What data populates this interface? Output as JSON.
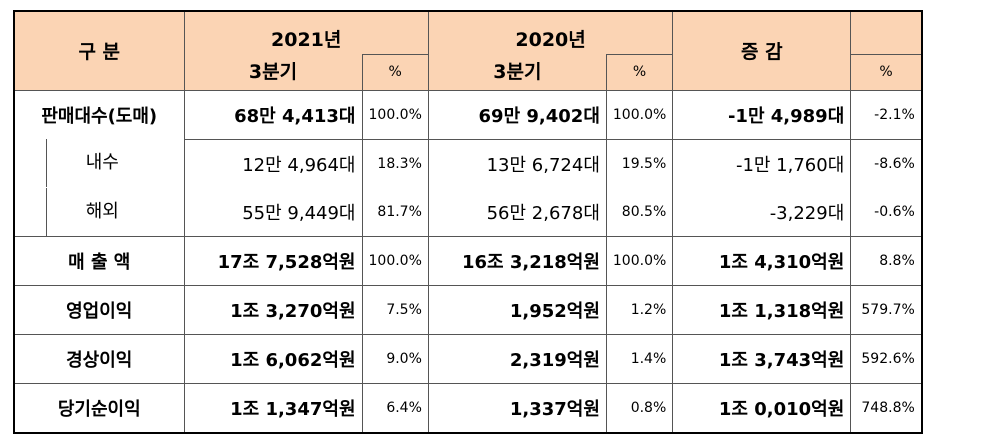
{
  "header": {
    "col_label": "구 분",
    "groups": [
      {
        "year": "2021년",
        "quarter": "3분기",
        "pct": "%"
      },
      {
        "year": "2020년",
        "quarter": "3분기",
        "pct": "%"
      }
    ],
    "change": {
      "label": "증 감",
      "pct": "%"
    }
  },
  "rows": [
    {
      "label": "판매대수(도매)",
      "cells": [
        "68만 4,413대",
        "100.0%",
        "69만 9,402대",
        "100.0%",
        "-1만 4,989대",
        "-2.1%"
      ]
    },
    {
      "label": "내수",
      "cells": [
        "12만 4,964대",
        "18.3%",
        "13만 6,724대",
        "19.5%",
        "-1만 1,760대",
        "-8.6%"
      ]
    },
    {
      "label": "해외",
      "cells": [
        "55만 9,449대",
        "81.7%",
        "56만 2,678대",
        "80.5%",
        "-3,229대",
        "-0.6%"
      ]
    },
    {
      "label": "매 출 액",
      "cells": [
        "17조 7,528억원",
        "100.0%",
        "16조 3,218억원",
        "100.0%",
        "1조 4,310억원",
        "8.8%"
      ]
    },
    {
      "label": "영업이익",
      "cells": [
        "1조 3,270억원",
        "7.5%",
        "1,952억원",
        "1.2%",
        "1조 1,318억원",
        "579.7%"
      ]
    },
    {
      "label": "경상이익",
      "cells": [
        "1조 6,062억원",
        "9.0%",
        "2,319억원",
        "1.4%",
        "1조 3,743억원",
        "592.6%"
      ]
    },
    {
      "label": "당기순이익",
      "cells": [
        "1조 1,347억원",
        "6.4%",
        "1,337억원",
        "0.8%",
        "1조 0,010억원",
        "748.8%"
      ]
    }
  ]
}
